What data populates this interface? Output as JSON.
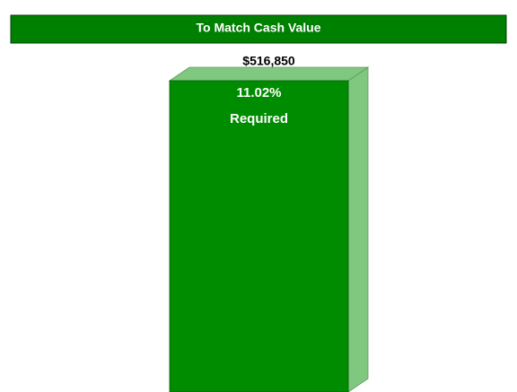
{
  "chart_data": {
    "type": "bar",
    "title": "To Match Cash Value",
    "values": [
      516850
    ],
    "value_labels": [
      "$516,850"
    ],
    "annotations": [
      "11.02%",
      "Required"
    ],
    "color": "#008c00",
    "side_color": "#80c880"
  }
}
